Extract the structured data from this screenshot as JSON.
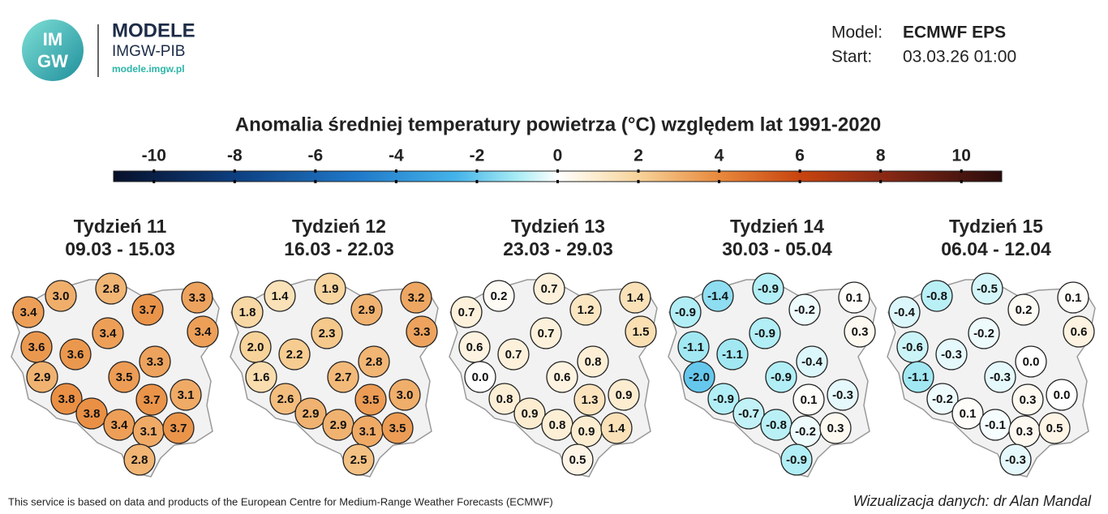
{
  "header": {
    "logo_text_top": "IM",
    "logo_text_bottom": "GW",
    "brand": "MODELE",
    "brand_sub": "IMGW-PIB",
    "brand_url": "modele.imgw.pl",
    "model_label": "Model:",
    "model_value": "ECMWF EPS",
    "start_label": "Start:",
    "start_value": "03.03.26 01:00"
  },
  "colorbar": {
    "title": "Anomalia średniej temperatury powietrza (°C) względem lat 1991-2020",
    "lim": [
      -11,
      11
    ],
    "ticks": [
      -10,
      -8,
      -6,
      -4,
      -2,
      0,
      2,
      4,
      6,
      8,
      10
    ]
  },
  "maps": [
    {
      "title": "Tydzień 11",
      "dates": "09.03 - 15.03",
      "values": [
        3.0,
        2.8,
        3.3,
        3.4,
        3.7,
        3.4,
        3.4,
        3.6,
        3.6,
        3.3,
        2.9,
        3.5,
        3.1,
        3.8,
        3.7,
        3.8,
        3.4,
        3.1,
        3.7,
        2.8
      ],
      "value_labels": [
        "3.0",
        "2.8",
        "3.3",
        "3.4",
        "3.7",
        "3.4",
        "3.4",
        "3.6",
        "3.6",
        "3.3",
        "2.9",
        "3.5",
        "3.1",
        "3.8",
        "3.7",
        "3.8",
        "3.4",
        "3.1",
        "3.7",
        "2.8"
      ]
    },
    {
      "title": "Tydzień 12",
      "dates": "16.03 - 22.03",
      "values": [
        1.4,
        1.9,
        3.2,
        1.8,
        2.9,
        3.3,
        2.3,
        2.0,
        2.2,
        2.8,
        1.6,
        2.7,
        3.0,
        2.6,
        3.5,
        2.9,
        2.9,
        3.1,
        3.5,
        2.5
      ],
      "value_labels": [
        "1.4",
        "1.9",
        "3.2",
        "1.8",
        "2.9",
        "3.3",
        "2.3",
        "2.0",
        "2.2",
        "2.8",
        "1.6",
        "2.7",
        "3.0",
        "2.6",
        "3.5",
        "2.9",
        "2.9",
        "3.1",
        "3.5",
        "2.5"
      ]
    },
    {
      "title": "Tydzień 13",
      "dates": "23.03 - 29.03",
      "values": [
        0.2,
        0.7,
        1.4,
        0.7,
        1.2,
        1.5,
        0.7,
        0.6,
        0.7,
        0.8,
        0.0,
        0.6,
        0.9,
        0.8,
        1.3,
        0.9,
        0.8,
        0.9,
        1.4,
        0.5
      ],
      "value_labels": [
        "0.2",
        "0.7",
        "1.4",
        "0.7",
        "1.2",
        "1.5",
        "0.7",
        "0.6",
        "0.7",
        "0.8",
        "0.0",
        "0.6",
        "0.9",
        "0.8",
        "1.3",
        "0.9",
        "0.8",
        "0.9",
        "1.4",
        "0.5"
      ]
    },
    {
      "title": "Tydzień 14",
      "dates": "30.03 - 05.04",
      "values": [
        -1.4,
        -0.9,
        0.1,
        -0.9,
        -0.2,
        0.3,
        -0.9,
        -1.1,
        -1.1,
        -0.4,
        -2.0,
        -0.9,
        -0.3,
        -0.9,
        0.1,
        -0.7,
        -0.8,
        -0.2,
        0.3,
        -0.9
      ],
      "value_labels": [
        "-1.4",
        "-0.9",
        "0.1",
        "-0.9",
        "-0.2",
        "0.3",
        "-0.9",
        "-1.1",
        "-1.1",
        "-0.4",
        "-2.0",
        "-0.9",
        "-0.3",
        "-0.9",
        "0.1",
        "-0.7",
        "-0.8",
        "-0.2",
        "0.3",
        "-0.9"
      ]
    },
    {
      "title": "Tydzień 15",
      "dates": "06.04 - 12.04",
      "values": [
        -0.8,
        -0.5,
        0.1,
        -0.4,
        0.2,
        0.6,
        -0.2,
        -0.6,
        -0.3,
        0.0,
        -1.1,
        -0.3,
        0.0,
        -0.2,
        0.3,
        0.1,
        -0.1,
        0.3,
        0.5,
        -0.3
      ],
      "value_labels": [
        "-0.8",
        "-0.5",
        "0.1",
        "-0.4",
        "0.2",
        "0.6",
        "-0.2",
        "-0.6",
        "-0.3",
        "0.0",
        "-1.1",
        "-0.3",
        "0.0",
        "-0.2",
        "0.3",
        "0.1",
        "-0.1",
        "0.3",
        "0.5",
        "-0.3"
      ]
    }
  ],
  "footer": {
    "source": "This service is based on data and products of the European Centre for Medium-Range Weather Forecasts (ECMWF)",
    "credit": "Wizualizacja danych: dr Alan Mandal"
  }
}
